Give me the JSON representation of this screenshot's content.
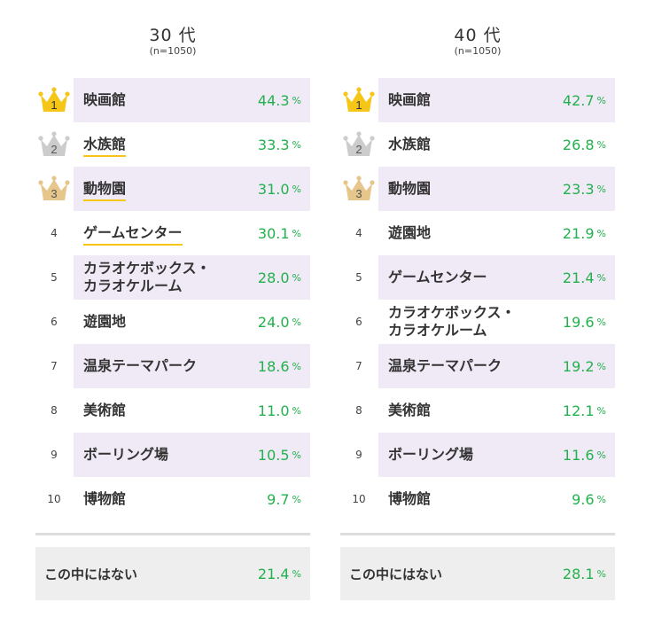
{
  "colors": {
    "shade": "#f0e9f6",
    "value": "#22b14c",
    "gold": "#f5c518",
    "silver": "#cccccc",
    "bronze": "#e6c68a",
    "none_bg": "#eeeeee"
  },
  "unit": "%",
  "chart_data": [
    {
      "type": "table",
      "title": "30 代",
      "subtitle": "(n=1050)",
      "rows": [
        {
          "rank": "1",
          "label": [
            "映画館"
          ],
          "value": 44.3
        },
        {
          "rank": "2",
          "label": [
            "水族館"
          ],
          "value": 33.3
        },
        {
          "rank": "3",
          "label": [
            "動物園"
          ],
          "value": 31.0
        },
        {
          "rank": "4",
          "label": [
            "ゲームセンター"
          ],
          "value": 30.1
        },
        {
          "rank": "5",
          "label": [
            "カラオケボックス・",
            "カラオケルーム"
          ],
          "value": 28.0
        },
        {
          "rank": "6",
          "label": [
            "遊園地"
          ],
          "value": 24.0
        },
        {
          "rank": "7",
          "label": [
            "温泉テーマパーク"
          ],
          "value": 18.6
        },
        {
          "rank": "8",
          "label": [
            "美術館"
          ],
          "value": 11.0
        },
        {
          "rank": "9",
          "label": [
            "ボーリング場"
          ],
          "value": 10.5
        },
        {
          "rank": "10",
          "label": [
            "博物館"
          ],
          "value": 9.7
        }
      ],
      "highlighted_labels": [
        "水族館",
        "動物園",
        "ゲームセンター"
      ],
      "none": {
        "label": "この中にはない",
        "value": 21.4
      }
    },
    {
      "type": "table",
      "title": "40 代",
      "subtitle": "(n=1050)",
      "rows": [
        {
          "rank": "1",
          "label": [
            "映画館"
          ],
          "value": 42.7
        },
        {
          "rank": "2",
          "label": [
            "水族館"
          ],
          "value": 26.8
        },
        {
          "rank": "3",
          "label": [
            "動物園"
          ],
          "value": 23.3
        },
        {
          "rank": "4",
          "label": [
            "遊園地"
          ],
          "value": 21.9
        },
        {
          "rank": "5",
          "label": [
            "ゲームセンター"
          ],
          "value": 21.4
        },
        {
          "rank": "6",
          "label": [
            "カラオケボックス・",
            "カラオケルーム"
          ],
          "value": 19.6
        },
        {
          "rank": "7",
          "label": [
            "温泉テーマパーク"
          ],
          "value": 19.2
        },
        {
          "rank": "8",
          "label": [
            "美術館"
          ],
          "value": 12.1
        },
        {
          "rank": "9",
          "label": [
            "ボーリング場"
          ],
          "value": 11.6
        },
        {
          "rank": "10",
          "label": [
            "博物館"
          ],
          "value": 9.6
        }
      ],
      "highlighted_labels": [],
      "none": {
        "label": "この中にはない",
        "value": 28.1
      }
    }
  ]
}
